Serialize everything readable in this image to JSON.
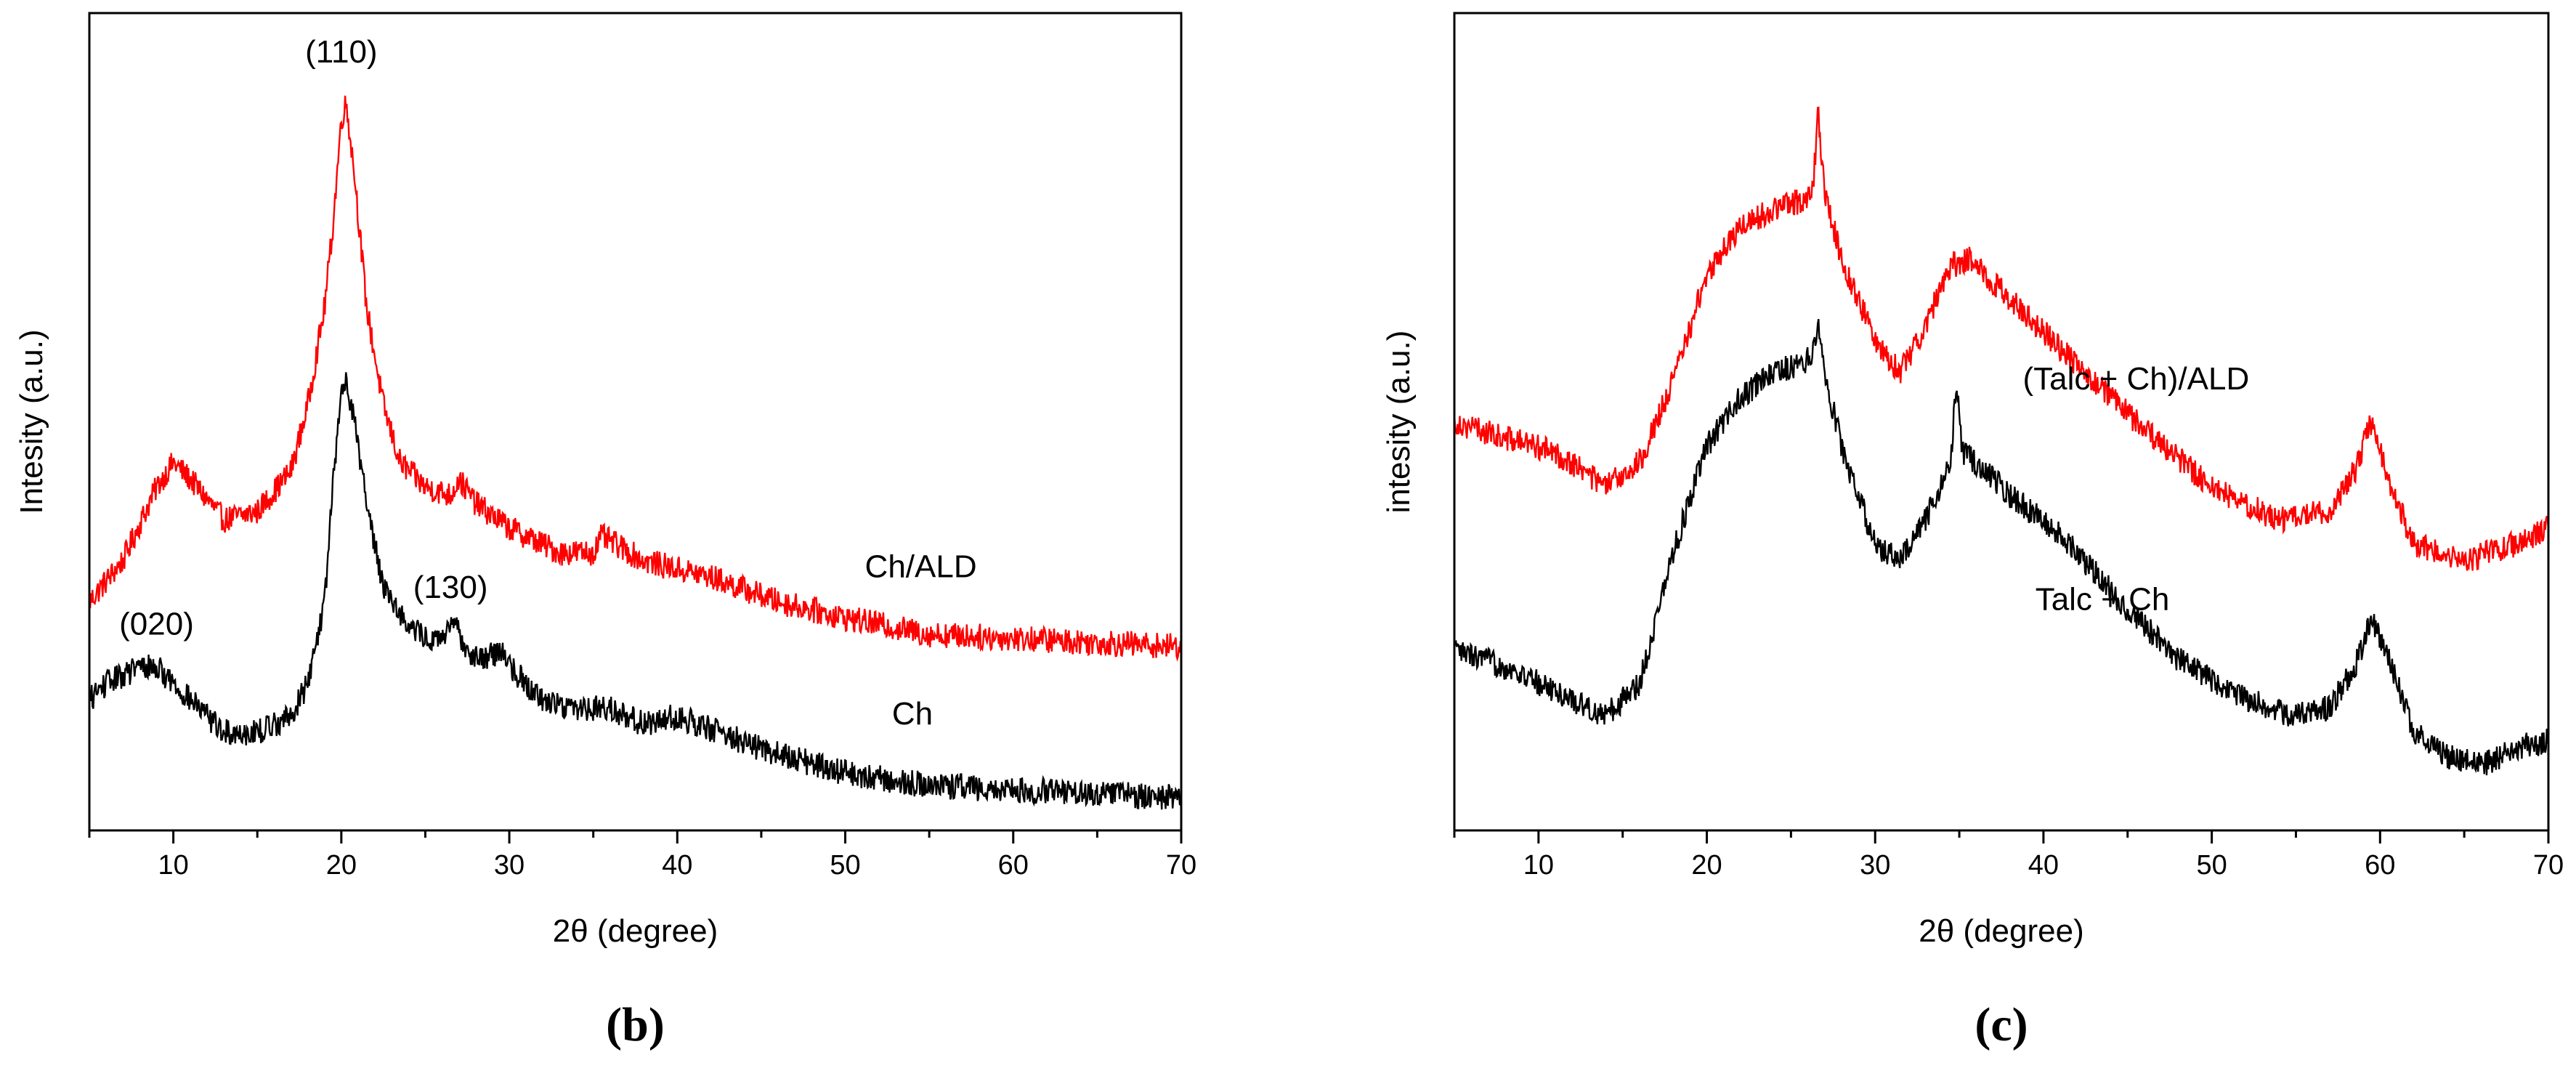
{
  "colors": {
    "red": "#ff0000",
    "black": "#000000"
  },
  "chart_data": [
    {
      "type": "line",
      "panel_label": "(b)",
      "xlabel": "2θ (degree)",
      "ylabel": "Intesity (a.u.)",
      "xlim": [
        5,
        70
      ],
      "ylim": [
        0,
        100
      ],
      "xticks": [
        10,
        20,
        30,
        40,
        50,
        60,
        70
      ],
      "series": [
        {
          "name": "Ch/ALD",
          "color": "#ff0000",
          "x": [
            5,
            7,
            9,
            10,
            11,
            13,
            15,
            17,
            18,
            19,
            19.5,
            20,
            20.3,
            20.8,
            21.5,
            22.5,
            23.5,
            25,
            26.5,
            27,
            28,
            30,
            33,
            35,
            35.5,
            38,
            42,
            46,
            50,
            55,
            60,
            65,
            70
          ],
          "y": [
            28,
            33,
            42,
            45,
            43,
            38,
            39,
            44,
            52,
            64,
            74,
            87,
            89,
            80,
            64,
            52,
            45,
            42,
            41,
            43,
            40,
            37,
            34,
            34,
            36,
            33,
            31,
            28,
            26,
            24,
            23.5,
            23,
            22.5
          ]
        },
        {
          "name": "Ch",
          "color": "#000000",
          "x": [
            5,
            6,
            8,
            9,
            10,
            12,
            13,
            15,
            17,
            18,
            19,
            19.5,
            20,
            20.3,
            20.8,
            21.5,
            22.5,
            24,
            25.5,
            26.8,
            27.5,
            28.5,
            29.5,
            30.5,
            32,
            34,
            36,
            38,
            40,
            45,
            50,
            55,
            60,
            65,
            70
          ],
          "y": [
            16,
            18,
            20,
            20,
            18,
            14,
            12,
            12,
            14,
            18,
            28,
            42,
            54,
            55,
            50,
            40,
            30,
            25,
            23,
            25,
            22,
            21,
            22,
            19,
            16,
            15,
            15,
            13,
            14,
            10,
            7,
            5.5,
            5,
            4.5,
            4
          ]
        }
      ],
      "annotations": [
        {
          "text": "(110)",
          "x": 20,
          "y": 95
        },
        {
          "text": "(020)",
          "x": 9,
          "y": 25
        },
        {
          "text": "(130)",
          "x": 26.5,
          "y": 29.5
        },
        {
          "text": "Ch/ALD",
          "x": 54.5,
          "y": 32
        },
        {
          "text": "Ch",
          "x": 54,
          "y": 14
        }
      ]
    },
    {
      "type": "line",
      "panel_label": "(c)",
      "xlabel": "2θ (degree)",
      "ylabel": "intesity (a.u.)",
      "xlim": [
        5,
        70
      ],
      "ylim": [
        0,
        100
      ],
      "xticks": [
        10,
        20,
        30,
        40,
        50,
        60,
        70
      ],
      "series": [
        {
          "name": "(Talc + Ch)/ALD",
          "color": "#ff0000",
          "x": [
            5,
            8,
            10,
            12,
            14,
            16,
            18,
            20,
            22,
            24,
            25.5,
            26.3,
            26.6,
            27,
            28,
            30,
            31.5,
            33,
            34.5,
            35.5,
            37,
            40,
            43,
            46,
            50,
            54,
            57,
            58.5,
            59.5,
            60.5,
            62,
            65,
            68,
            70
          ],
          "y": [
            50,
            48,
            47,
            45,
            42,
            45,
            55,
            68,
            74,
            76,
            77,
            78,
            88,
            78,
            70,
            60,
            56,
            62,
            69,
            70,
            67,
            61,
            55,
            49,
            42,
            38,
            39,
            44,
            50,
            43,
            35,
            33,
            35,
            37
          ]
        },
        {
          "name": "Talc + Ch",
          "color": "#000000",
          "x": [
            5,
            8,
            10,
            12,
            14,
            16,
            18,
            20,
            22,
            24,
            25.5,
            26.3,
            26.6,
            27,
            28,
            30,
            31.5,
            33,
            34.5,
            34.8,
            35.2,
            36,
            38,
            40,
            42,
            45,
            48,
            52,
            55,
            57,
            58.5,
            59.5,
            60.5,
            62,
            64,
            66,
            68,
            70
          ],
          "y": [
            22,
            20,
            18,
            16,
            14,
            18,
            34,
            47,
            53,
            56,
            57,
            58,
            63,
            56,
            47,
            35,
            33,
            38,
            45,
            55,
            46,
            45,
            41,
            38,
            34,
            27,
            21,
            16,
            14,
            15,
            20,
            26,
            21,
            12,
            9,
            8,
            10,
            11
          ]
        }
      ],
      "annotations": [
        {
          "text": "(Talc + Ch)/ALD",
          "x": 45.5,
          "y": 55
        },
        {
          "text": "Talc + Ch",
          "x": 43.5,
          "y": 28
        }
      ]
    }
  ]
}
